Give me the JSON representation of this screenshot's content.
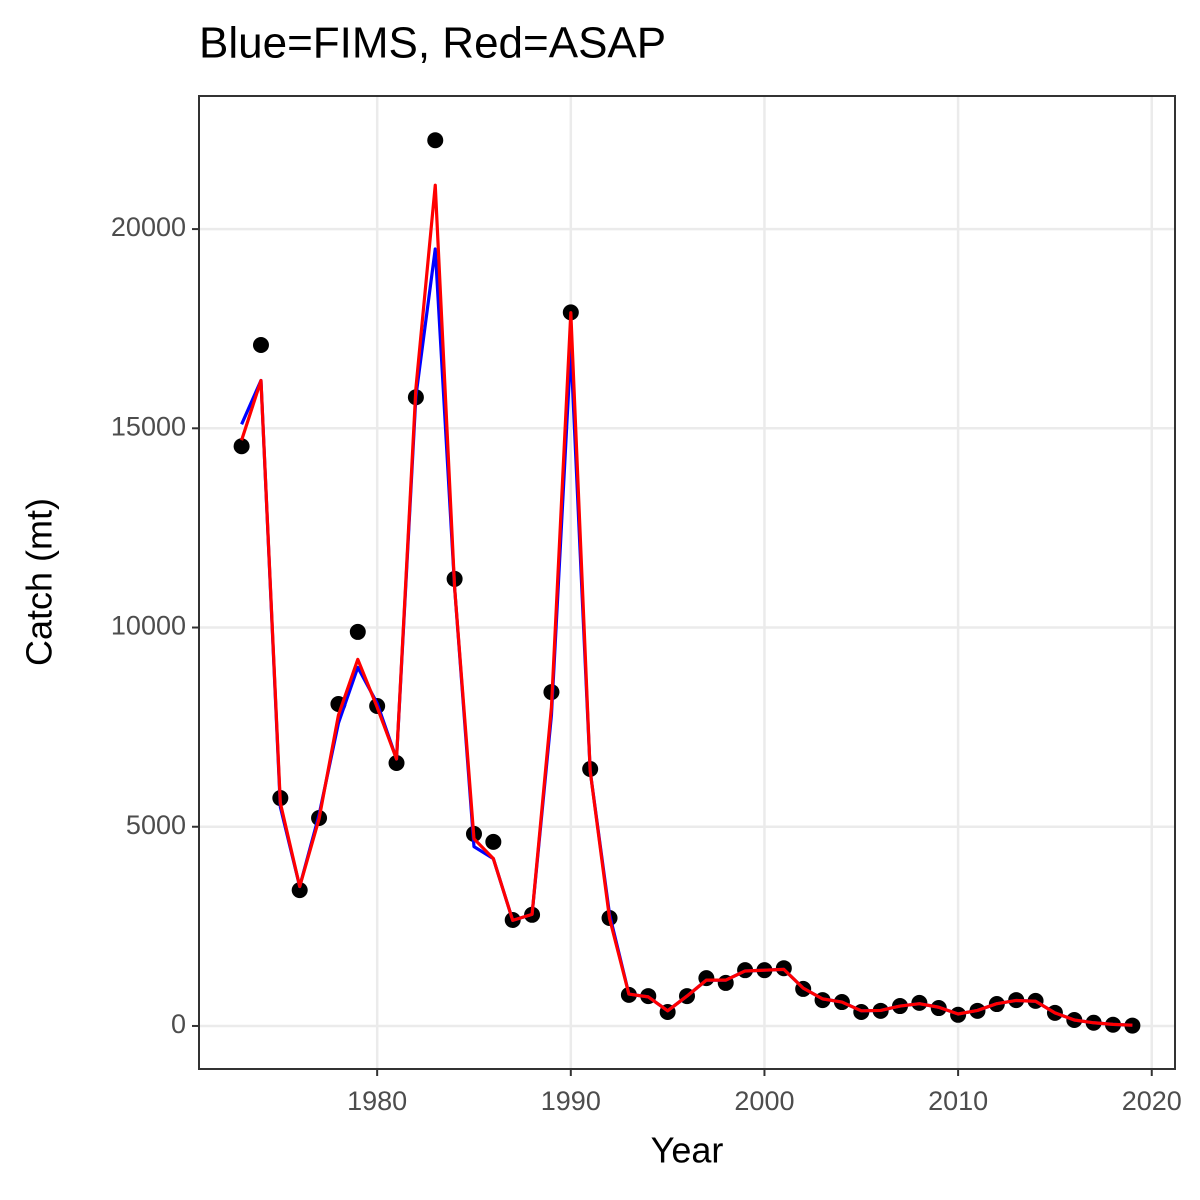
{
  "chart_data": {
    "type": "line",
    "title": "Blue=FIMS, Red=ASAP",
    "x_label": "Year",
    "y_label": "Catch (mt)",
    "x": [
      1973,
      1974,
      1975,
      1976,
      1977,
      1978,
      1979,
      1980,
      1981,
      1982,
      1983,
      1984,
      1985,
      1986,
      1987,
      1988,
      1989,
      1990,
      1991,
      1992,
      1993,
      1994,
      1995,
      1996,
      1997,
      1998,
      1999,
      2000,
      2001,
      2002,
      2003,
      2004,
      2005,
      2006,
      2007,
      2008,
      2009,
      2010,
      2011,
      2012,
      2013,
      2014,
      2015,
      2016,
      2017,
      2018,
      2019
    ],
    "series": [
      {
        "style": "points",
        "color": "#000000",
        "values": [
          14550,
          17090,
          5720,
          3410,
          5220,
          8080,
          9890,
          8030,
          6600,
          15780,
          22230,
          11220,
          4820,
          4620,
          2660,
          2790,
          8380,
          17910,
          6450,
          2710,
          780,
          750,
          350,
          750,
          1200,
          1080,
          1400,
          1400,
          1450,
          930,
          650,
          600,
          350,
          380,
          500,
          580,
          450,
          280,
          380,
          550,
          650,
          630,
          330,
          150,
          80,
          30,
          10
        ]
      },
      {
        "style": "line",
        "color": "#0000ff",
        "values": [
          15100,
          16200,
          5500,
          3500,
          5300,
          7600,
          9000,
          8100,
          6700,
          15800,
          19500,
          11000,
          4500,
          4200,
          2650,
          2800,
          7800,
          17000,
          6400,
          2800,
          800,
          730,
          380,
          750,
          1150,
          1150,
          1380,
          1400,
          1420,
          950,
          680,
          600,
          380,
          390,
          500,
          560,
          470,
          300,
          390,
          560,
          640,
          620,
          330,
          150,
          80,
          40,
          20
        ]
      },
      {
        "style": "line",
        "color": "#ff0000",
        "values": [
          14700,
          16200,
          5600,
          3500,
          5200,
          7800,
          9200,
          8000,
          6700,
          16000,
          21100,
          11000,
          4700,
          4200,
          2650,
          2800,
          8000,
          17900,
          6400,
          2700,
          800,
          730,
          380,
          750,
          1150,
          1150,
          1380,
          1400,
          1420,
          950,
          680,
          600,
          380,
          390,
          500,
          560,
          470,
          300,
          390,
          560,
          640,
          620,
          330,
          150,
          80,
          40,
          20
        ]
      }
    ],
    "xlim": [
      1970.8,
      2021.2
    ],
    "xticks": [
      1980,
      1990,
      2000,
      2010,
      2020
    ],
    "ylim": [
      -1080,
      23340
    ],
    "yticks": [
      0,
      5000,
      10000,
      15000,
      20000
    ],
    "grid": true
  }
}
